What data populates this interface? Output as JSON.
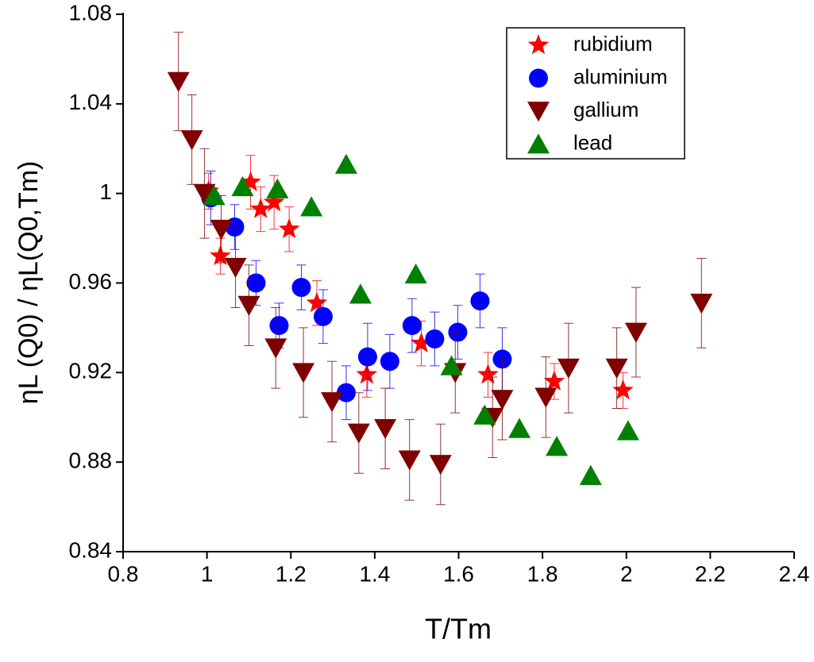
{
  "chart_data": {
    "type": "scatter",
    "xlabel": "T/Tm",
    "ylabel": "ηL (Q0) / ηL(Q0,Tm)",
    "xlim": [
      0.8,
      2.4
    ],
    "xticks": [
      0.8,
      1,
      1.2,
      1.4,
      1.6,
      1.8,
      2,
      2.2,
      2.4
    ],
    "ylim": [
      0.84,
      1.08
    ],
    "yticks": [
      0.84,
      0.88,
      0.92,
      0.96,
      1,
      1.04,
      1.08
    ],
    "legend": "upper right",
    "series": [
      {
        "name": "rubidium",
        "color": "#ff0000",
        "marker": "star",
        "x": [
          1.004,
          1.032,
          1.104,
          1.128,
          1.16,
          1.196,
          1.262,
          1.381,
          1.511,
          1.67,
          1.828,
          1.992
        ],
        "values": [
          1.001,
          0.972,
          1.005,
          0.993,
          0.996,
          0.984,
          0.951,
          0.919,
          0.933,
          0.919,
          0.916,
          0.912
        ],
        "errors": [
          0.008,
          0.008,
          0.012,
          0.01,
          0.012,
          0.01,
          0.01,
          0.01,
          0.01,
          0.01,
          0.008,
          0.008
        ]
      },
      {
        "name": "aluminium",
        "color": "#0000ff",
        "marker": "circle",
        "x": [
          1.009,
          1.066,
          1.117,
          1.172,
          1.225,
          1.277,
          1.332,
          1.383,
          1.436,
          1.489,
          1.543,
          1.598,
          1.651,
          1.704
        ],
        "values": [
          0.998,
          0.985,
          0.96,
          0.941,
          0.958,
          0.945,
          0.911,
          0.927,
          0.925,
          0.941,
          0.935,
          0.938,
          0.952,
          0.926
        ],
        "errors": [
          0.012,
          0.01,
          0.01,
          0.01,
          0.01,
          0.012,
          0.012,
          0.015,
          0.012,
          0.012,
          0.012,
          0.012,
          0.012,
          0.014
        ]
      },
      {
        "name": "gallium",
        "color": "#800000",
        "marker": "triangle-down",
        "x": [
          0.932,
          0.964,
          0.994,
          1.034,
          1.068,
          1.1,
          1.164,
          1.23,
          1.298,
          1.362,
          1.425,
          1.483,
          1.557,
          1.592,
          1.681,
          1.704,
          1.808,
          1.862,
          1.977,
          2.023,
          2.179
        ],
        "values": [
          1.05,
          1.024,
          1.0,
          0.984,
          0.967,
          0.95,
          0.931,
          0.92,
          0.907,
          0.893,
          0.895,
          0.881,
          0.879,
          0.92,
          0.9,
          0.908,
          0.909,
          0.922,
          0.922,
          0.938,
          0.951
        ],
        "errors": [
          0.022,
          0.02,
          0.02,
          0.015,
          0.018,
          0.018,
          0.018,
          0.02,
          0.018,
          0.018,
          0.018,
          0.018,
          0.018,
          0.018,
          0.018,
          0.018,
          0.018,
          0.02,
          0.018,
          0.02,
          0.02
        ]
      },
      {
        "name": "lead",
        "color": "#008000",
        "marker": "triangle-up",
        "x": [
          1.017,
          1.085,
          1.168,
          1.249,
          1.332,
          1.366,
          1.498,
          1.583,
          1.662,
          1.745,
          1.834,
          1.915,
          2.004
        ],
        "values": [
          0.999,
          1.003,
          1.002,
          0.994,
          1.013,
          0.955,
          0.964,
          0.923,
          0.901,
          0.895,
          0.887,
          0.874,
          0.894
        ]
      }
    ]
  }
}
